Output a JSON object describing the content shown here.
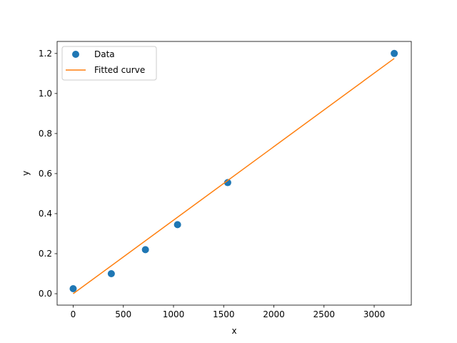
{
  "chart_data": {
    "type": "scatter",
    "title": "",
    "xlabel": "x",
    "ylabel": "y",
    "xlim": [
      -160,
      3370
    ],
    "ylim": [
      -0.057,
      1.26
    ],
    "xticks": [
      0,
      500,
      1000,
      1500,
      2000,
      2500,
      3000
    ],
    "xtick_labels": [
      "0",
      "500",
      "1000",
      "1500",
      "2000",
      "2500",
      "3000"
    ],
    "yticks": [
      0.0,
      0.2,
      0.4,
      0.6,
      0.8,
      1.0,
      1.2
    ],
    "ytick_labels": [
      "0.0",
      "0.2",
      "0.4",
      "0.6",
      "0.8",
      "1.0",
      "1.2"
    ],
    "grid": false,
    "legend": "upper-left",
    "series": [
      {
        "name": "Data",
        "kind": "scatter",
        "color": "#1f77b4",
        "x": [
          0,
          380,
          720,
          1040,
          1540,
          3200
        ],
        "y": [
          0.025,
          0.1,
          0.22,
          0.345,
          0.555,
          1.2
        ]
      },
      {
        "name": "Fitted curve",
        "kind": "line",
        "color": "#ff7f0e",
        "x": [
          0,
          3200
        ],
        "y": [
          0.0,
          1.175
        ]
      }
    ]
  }
}
